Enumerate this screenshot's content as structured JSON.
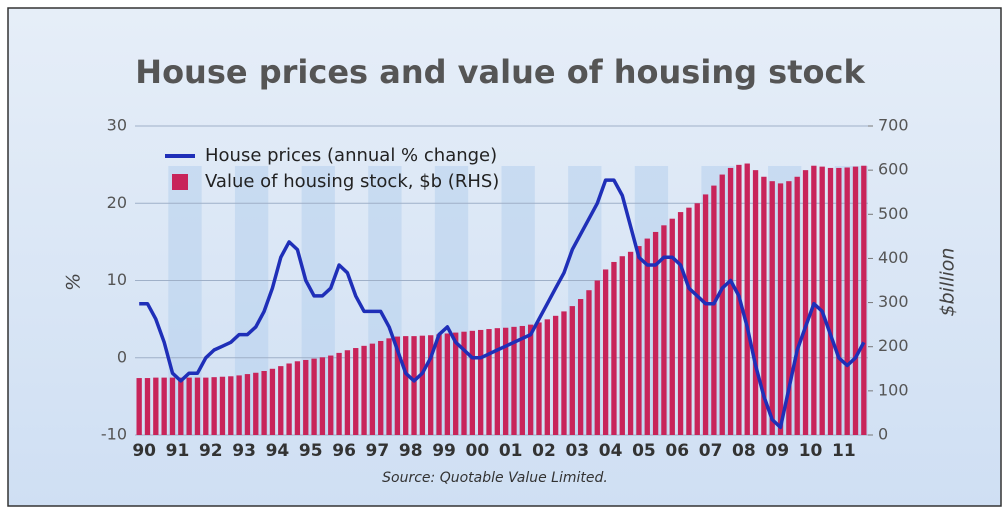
{
  "chart_data": {
    "type": "bar_line",
    "title": "House prices and value of housing stock",
    "source": "Source: Quotable Value Limited.",
    "y_label": "%",
    "y2_label": "$billion",
    "categories": [
      "90",
      null,
      null,
      null,
      "91",
      null,
      null,
      null,
      "92",
      null,
      null,
      null,
      "93",
      null,
      null,
      null,
      "94",
      null,
      null,
      null,
      "95",
      null,
      null,
      null,
      "96",
      null,
      null,
      null,
      "97",
      null,
      null,
      null,
      "98",
      null,
      null,
      null,
      "99",
      null,
      null,
      null,
      "00",
      null,
      null,
      null,
      "01",
      null,
      null,
      null,
      "02",
      null,
      null,
      null,
      "03",
      null,
      null,
      null,
      "04",
      null,
      null,
      null,
      "05",
      null,
      null,
      null,
      "06",
      null,
      null,
      null,
      "07",
      null,
      null,
      null,
      "08",
      null,
      null,
      null,
      "09",
      null,
      null,
      null,
      "10",
      null,
      null,
      null,
      "11",
      null,
      null,
      null
    ],
    "series": [
      {
        "name": "House prices (annual % change)",
        "type": "line",
        "color": "#1f2fb8",
        "values": [
          7,
          7,
          5,
          2,
          -2,
          -3,
          -2,
          -2,
          0,
          1,
          1.5,
          2,
          3,
          3,
          4,
          6,
          9,
          13,
          15,
          14,
          10,
          8,
          8,
          9,
          12,
          11,
          8,
          6,
          6,
          6,
          4,
          1,
          -2,
          -3,
          -2,
          0,
          3,
          4,
          2,
          1,
          0,
          0,
          0.5,
          1,
          1.5,
          2,
          2.5,
          3,
          5,
          7,
          9,
          11,
          14,
          16,
          18,
          20,
          23,
          23,
          21,
          17,
          13,
          12,
          12,
          13,
          13,
          12,
          9,
          8,
          7,
          7,
          9,
          10,
          8,
          4,
          -1,
          -5,
          -8,
          -9,
          -4,
          1,
          4,
          7,
          6,
          3,
          0,
          -1,
          0,
          2
        ]
      },
      {
        "name": "Value of housing stock, $b (RHS)",
        "type": "bar",
        "axis": "y2",
        "color": "#c8245a",
        "values": [
          129,
          129,
          130,
          130,
          130,
          130,
          130,
          130,
          130,
          131,
          132,
          133,
          135,
          138,
          141,
          145,
          150,
          156,
          162,
          167,
          170,
          173,
          176,
          180,
          186,
          192,
          197,
          202,
          207,
          213,
          219,
          223,
          224,
          224,
          225,
          226,
          228,
          230,
          232,
          234,
          236,
          238,
          240,
          242,
          243,
          245,
          247,
          250,
          255,
          262,
          270,
          280,
          292,
          308,
          328,
          350,
          375,
          392,
          405,
          415,
          428,
          445,
          460,
          475,
          490,
          505,
          515,
          525,
          545,
          565,
          590,
          605,
          612,
          615,
          600,
          585,
          575,
          570,
          575,
          585,
          600,
          610,
          608,
          605,
          605,
          606,
          608,
          610
        ]
      }
    ],
    "ylim": [
      -10,
      30
    ],
    "yticks": [
      -10,
      0,
      10,
      20,
      30
    ],
    "y2lim": [
      0,
      700
    ],
    "y2ticks": [
      0,
      100,
      200,
      300,
      400,
      500,
      600,
      700
    ],
    "grid": true
  }
}
